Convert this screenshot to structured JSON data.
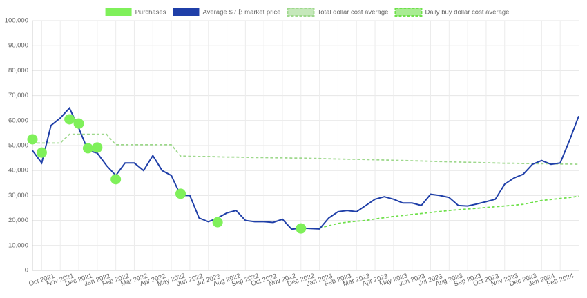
{
  "chart_data": {
    "type": "line",
    "categories": [
      null,
      "Oct 2021",
      null,
      "Nov 2021",
      null,
      "Dec 2021",
      null,
      "Jan 2022",
      null,
      "Feb 2022",
      null,
      "Mar 2022",
      null,
      "Apr 2022",
      null,
      "May 2022",
      null,
      "Jun 2022",
      null,
      "Jul 2022",
      null,
      "Aug 2022",
      null,
      "Sep 2022",
      null,
      "Oct 2022",
      null,
      "Nov 2022",
      null,
      "Dec 2022",
      null,
      "Jan 2023",
      null,
      "Feb 2023",
      null,
      "Mar 2023",
      null,
      "Apr 2023",
      null,
      "May 2023",
      null,
      "Jun 2023",
      null,
      "Jul 2023",
      null,
      "Aug 2023",
      null,
      "Sep 2023",
      null,
      "Oct 2023",
      null,
      "Nov 2023",
      null,
      "Dec 2023",
      null,
      "Jan 2024",
      null,
      "Feb 2024",
      null,
      null
    ],
    "series": [
      {
        "name": "Purchases",
        "kind": "scatter",
        "color": "#7ff05a",
        "values": [
          52500,
          47200,
          null,
          null,
          60500,
          58800,
          48900,
          49200,
          null,
          36500,
          null,
          null,
          null,
          null,
          null,
          null,
          30700,
          null,
          null,
          null,
          19300,
          null,
          null,
          null,
          null,
          null,
          null,
          null,
          null,
          16800,
          null,
          null,
          null,
          null,
          null,
          null,
          null,
          null,
          null,
          null,
          null,
          null,
          null,
          null,
          null,
          null,
          null,
          null,
          null,
          null,
          null,
          null,
          null,
          null,
          null,
          null,
          null,
          null,
          null,
          null
        ]
      },
      {
        "name": "Average $ / ₿ market price",
        "kind": "line",
        "color": "#1f3fa8",
        "values": [
          48000,
          43000,
          58000,
          61000,
          65000,
          57000,
          48000,
          47000,
          42000,
          38000,
          43000,
          43000,
          40000,
          46000,
          40000,
          38000,
          30000,
          30000,
          21000,
          19500,
          21000,
          23000,
          24000,
          20000,
          19500,
          19500,
          19200,
          20500,
          16500,
          17000,
          16800,
          16600,
          21000,
          23500,
          24000,
          23500,
          26000,
          28500,
          29500,
          28500,
          27000,
          27000,
          26000,
          30500,
          30000,
          29200,
          26000,
          25800,
          26600,
          27500,
          28500,
          34500,
          37000,
          38500,
          42500,
          44000,
          42500,
          43000,
          52000,
          61800
        ]
      },
      {
        "name": "Total dollar cost average",
        "kind": "dashed",
        "color": "#9ed88c",
        "values": [
          51000,
          51000,
          51000,
          51000,
          54500,
          54500,
          54500,
          54500,
          54500,
          50300,
          50300,
          50300,
          50300,
          50300,
          50300,
          50300,
          45800,
          45700,
          45600,
          45600,
          45500,
          45400,
          45400,
          45300,
          45200,
          45200,
          45100,
          45100,
          45000,
          45000,
          44900,
          44800,
          44700,
          44600,
          44500,
          44500,
          44400,
          44300,
          44200,
          44100,
          44000,
          43900,
          43800,
          43700,
          43600,
          43500,
          43400,
          43300,
          43200,
          43100,
          43000,
          42900,
          42900,
          42800,
          42800,
          42700,
          42700,
          42600,
          42600,
          42500
        ]
      },
      {
        "name": "Daily buy dollar cost average",
        "kind": "dashed",
        "color": "#6ee04a",
        "values": [
          null,
          null,
          null,
          null,
          null,
          null,
          null,
          null,
          null,
          null,
          null,
          null,
          null,
          null,
          null,
          null,
          null,
          null,
          null,
          null,
          null,
          null,
          null,
          null,
          null,
          null,
          null,
          null,
          null,
          null,
          null,
          17000,
          17900,
          18800,
          19300,
          19700,
          20000,
          20600,
          21100,
          21600,
          22000,
          22400,
          22800,
          23200,
          23600,
          24000,
          24300,
          24600,
          24900,
          25200,
          25500,
          25800,
          26100,
          26500,
          27200,
          28000,
          28400,
          28800,
          29200,
          29700
        ]
      }
    ],
    "ylim": [
      0,
      100000
    ],
    "yticks": [
      0,
      {
        "value": 10000,
        "label": "10,000"
      },
      {
        "value": 20000,
        "label": "20,000"
      },
      {
        "value": 30000,
        "label": "30,000"
      },
      {
        "value": 40000,
        "label": "40,000"
      },
      {
        "value": 50000,
        "label": "50,000"
      },
      {
        "value": 60000,
        "label": "60,000"
      },
      {
        "value": 70000,
        "label": "70,000"
      },
      {
        "value": 80000,
        "label": "80,000"
      },
      {
        "value": 90000,
        "label": "90,000"
      },
      {
        "value": 100000,
        "label": "100,000"
      }
    ],
    "grid": true,
    "legend": "top"
  }
}
